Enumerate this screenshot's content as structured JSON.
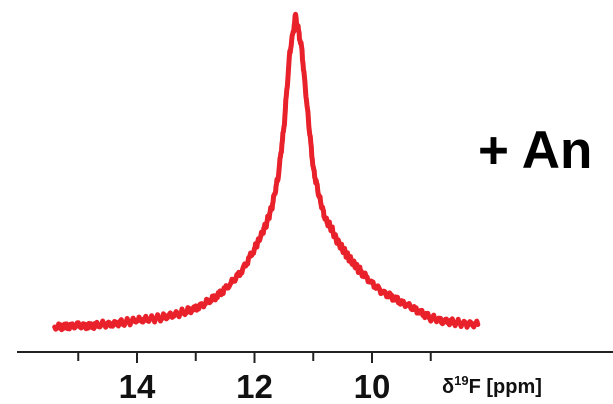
{
  "chart_data": {
    "type": "line",
    "annotation": "+ An",
    "xlabel": {
      "prefix": "δ",
      "superscript": "19",
      "suffix": "F [ppm]"
    },
    "x_reversed": true,
    "xlim": [
      15.4,
      8.2
    ],
    "ylim": [
      0,
      1
    ],
    "x_ticks": [
      14,
      12,
      10
    ],
    "x_minor_ticks": [
      15,
      13,
      11,
      9
    ],
    "line_color": "#e8212b",
    "axis_color": "#222222",
    "series": [
      {
        "x": [
          15.4,
          15.2,
          15.0,
          14.8,
          14.6,
          14.4,
          14.2,
          14.0,
          13.8,
          13.6,
          13.4,
          13.2,
          13.0,
          12.8,
          12.6,
          12.4,
          12.2,
          12.0,
          11.9,
          11.8,
          11.7,
          11.6,
          11.5,
          11.4,
          11.3,
          11.2,
          11.1,
          11.0,
          10.9,
          10.8,
          10.7,
          10.6,
          10.5,
          10.4,
          10.3,
          10.2,
          10.0,
          9.8,
          9.6,
          9.4,
          9.2,
          9.0,
          8.8,
          8.6,
          8.4,
          8.2
        ],
        "y": [
          0.0,
          0.002,
          0.004,
          0.003,
          0.008,
          0.01,
          0.015,
          0.022,
          0.025,
          0.03,
          0.038,
          0.048,
          0.06,
          0.08,
          0.105,
          0.14,
          0.185,
          0.25,
          0.29,
          0.33,
          0.39,
          0.48,
          0.64,
          0.88,
          1.0,
          0.9,
          0.7,
          0.51,
          0.42,
          0.35,
          0.32,
          0.28,
          0.25,
          0.225,
          0.2,
          0.18,
          0.14,
          0.11,
          0.09,
          0.07,
          0.05,
          0.03,
          0.02,
          0.015,
          0.01,
          0.008
        ]
      }
    ]
  }
}
